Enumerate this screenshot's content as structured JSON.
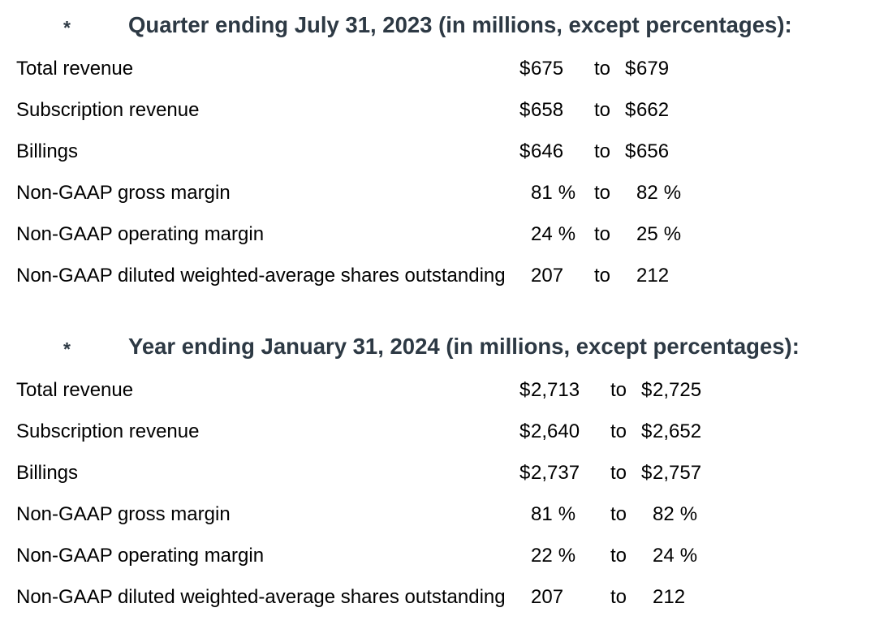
{
  "sections": [
    {
      "bullet": "*",
      "title": "Quarter ending July 31, 2023 (in millions, except percentages):",
      "range_word": "to",
      "rows": [
        {
          "label": "Total revenue",
          "low": {
            "pfx": "$",
            "num": "675",
            "sfx": ""
          },
          "high": {
            "pfx": "$",
            "num": "679",
            "sfx": ""
          }
        },
        {
          "label": "Subscription revenue",
          "low": {
            "pfx": "$",
            "num": "658",
            "sfx": ""
          },
          "high": {
            "pfx": "$",
            "num": "662",
            "sfx": ""
          }
        },
        {
          "label": "Billings",
          "low": {
            "pfx": "$",
            "num": "646",
            "sfx": ""
          },
          "high": {
            "pfx": "$",
            "num": "656",
            "sfx": ""
          }
        },
        {
          "label": "Non-GAAP gross margin",
          "low": {
            "pfx": "",
            "num": "81",
            "sfx": "%"
          },
          "high": {
            "pfx": "",
            "num": "82",
            "sfx": "%"
          }
        },
        {
          "label": "Non-GAAP operating margin",
          "low": {
            "pfx": "",
            "num": "24",
            "sfx": "%"
          },
          "high": {
            "pfx": "",
            "num": "25",
            "sfx": "%"
          }
        },
        {
          "label": "Non-GAAP diluted weighted-average shares outstanding",
          "low": {
            "pfx": "",
            "num": "207",
            "sfx": ""
          },
          "high": {
            "pfx": "",
            "num": "212",
            "sfx": ""
          }
        }
      ]
    },
    {
      "bullet": "*",
      "title": "Year ending January 31, 2024 (in millions, except percentages):",
      "range_word": "to",
      "rows": [
        {
          "label": "Total revenue",
          "low": {
            "pfx": "$",
            "num": "2,713",
            "sfx": ""
          },
          "high": {
            "pfx": "$",
            "num": "2,725",
            "sfx": ""
          }
        },
        {
          "label": "Subscription revenue",
          "low": {
            "pfx": "$",
            "num": "2,640",
            "sfx": ""
          },
          "high": {
            "pfx": "$",
            "num": "2,652",
            "sfx": ""
          }
        },
        {
          "label": "Billings",
          "low": {
            "pfx": "$",
            "num": "2,737",
            "sfx": ""
          },
          "high": {
            "pfx": "$",
            "num": "2,757",
            "sfx": ""
          }
        },
        {
          "label": "Non-GAAP gross margin",
          "low": {
            "pfx": "",
            "num": "81",
            "sfx": "%"
          },
          "high": {
            "pfx": "",
            "num": "82",
            "sfx": "%"
          }
        },
        {
          "label": "Non-GAAP operating margin",
          "low": {
            "pfx": "",
            "num": "22",
            "sfx": "%"
          },
          "high": {
            "pfx": "",
            "num": "24",
            "sfx": "%"
          }
        },
        {
          "label": "Non-GAAP diluted weighted-average shares outstanding",
          "low": {
            "pfx": "",
            "num": "207",
            "sfx": ""
          },
          "high": {
            "pfx": "",
            "num": "212",
            "sfx": ""
          }
        }
      ]
    }
  ],
  "colors": {
    "header_text": "#2d3944",
    "body_text": "#000000",
    "background": "#ffffff"
  }
}
